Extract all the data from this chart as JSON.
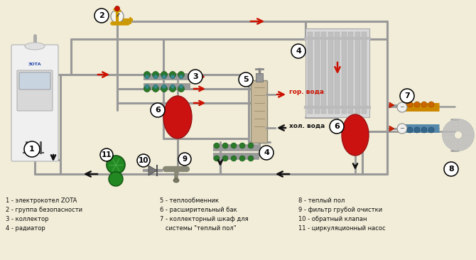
{
  "bg_color": "#f2edd8",
  "pipe_color": "#999999",
  "hot_arrow_color": "#cc1100",
  "cold_arrow_color": "#111111",
  "legend_col1": [
    "1 - электрокотел ZOTA",
    "2 - группа безопасности",
    "3 - коллектор",
    "4 - радиатор"
  ],
  "legend_col2": [
    "5 - теплообменник",
    "6 - расширительный бак",
    "7 - коллекторный шкаф для",
    "   системы \"теплый пол\""
  ],
  "legend_col3": [
    "8 - теплый пол",
    "9 - фильтр грубой очистки",
    "10 - обратный клапан",
    "11 - циркуляционный насос"
  ],
  "gor_voda": "гор. вода",
  "hol_voda": "хол. вода"
}
